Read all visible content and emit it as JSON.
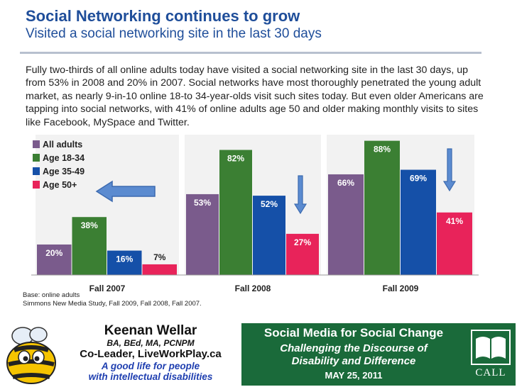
{
  "slide": {
    "title": "Social Networking continues to grow",
    "subtitle": "Visited a social networking site in the last 30 days",
    "paragraph": "Fully two-thirds of all online adults today have visited a social networking site in the last 30 days, up from 53% in 2008 and 20% in 2007. Social networks have most thoroughly penetrated the young adult market, as nearly 9-in-10 online 18-to 34-year-olds visit such sites today. But even older Americans are tapping into social networks, with 41% of online adults age 50 and older making monthly visits to sites like Facebook, MySpace and Twitter.",
    "base_note": "Base: online adults",
    "source_note": "Simmons New Media Study, Fall 2009, Fall 2008, Fall 2007."
  },
  "chart_data": {
    "type": "bar",
    "categories": [
      "Fall 2007",
      "Fall 2008",
      "Fall 2009"
    ],
    "series": [
      {
        "name": "All adults",
        "color": "#7a5b8c",
        "values": [
          20,
          53,
          66
        ],
        "labels": [
          "20%",
          "53%",
          "66%"
        ]
      },
      {
        "name": "Age 18-34",
        "color": "#3b7f33",
        "values": [
          38,
          82,
          88
        ],
        "labels": [
          "38%",
          "82%",
          "88%"
        ]
      },
      {
        "name": "Age 35-49",
        "color": "#1550a8",
        "values": [
          16,
          52,
          69
        ],
        "labels": [
          "16%",
          "52%",
          "69%"
        ]
      },
      {
        "name": "Age 50+",
        "color": "#e8235a",
        "values": [
          7,
          27,
          41
        ],
        "labels": [
          "7%",
          "27%",
          "41%"
        ]
      }
    ],
    "ylim": [
      0,
      92
    ],
    "legend": "top-left",
    "annotations": [
      "left arrow pointing to Age 50+ legend",
      "down arrow Fall 2008",
      "down arrow Fall 2009"
    ]
  },
  "footer": {
    "name": "Keenan Wellar",
    "credentials": "BA, BEd, MA, PCNPM",
    "role": "Co-Leader, LiveWorkPlay.ca",
    "tagline_1": "A good life for people",
    "tagline_2": "with intellectual disabilities",
    "event_title": "Social Media for Social Change",
    "event_sub_1": "Challenging the Discourse of",
    "event_sub_2": "Disability and Difference",
    "event_date": "MAY 25, 2011",
    "logo_text": "CALL"
  }
}
